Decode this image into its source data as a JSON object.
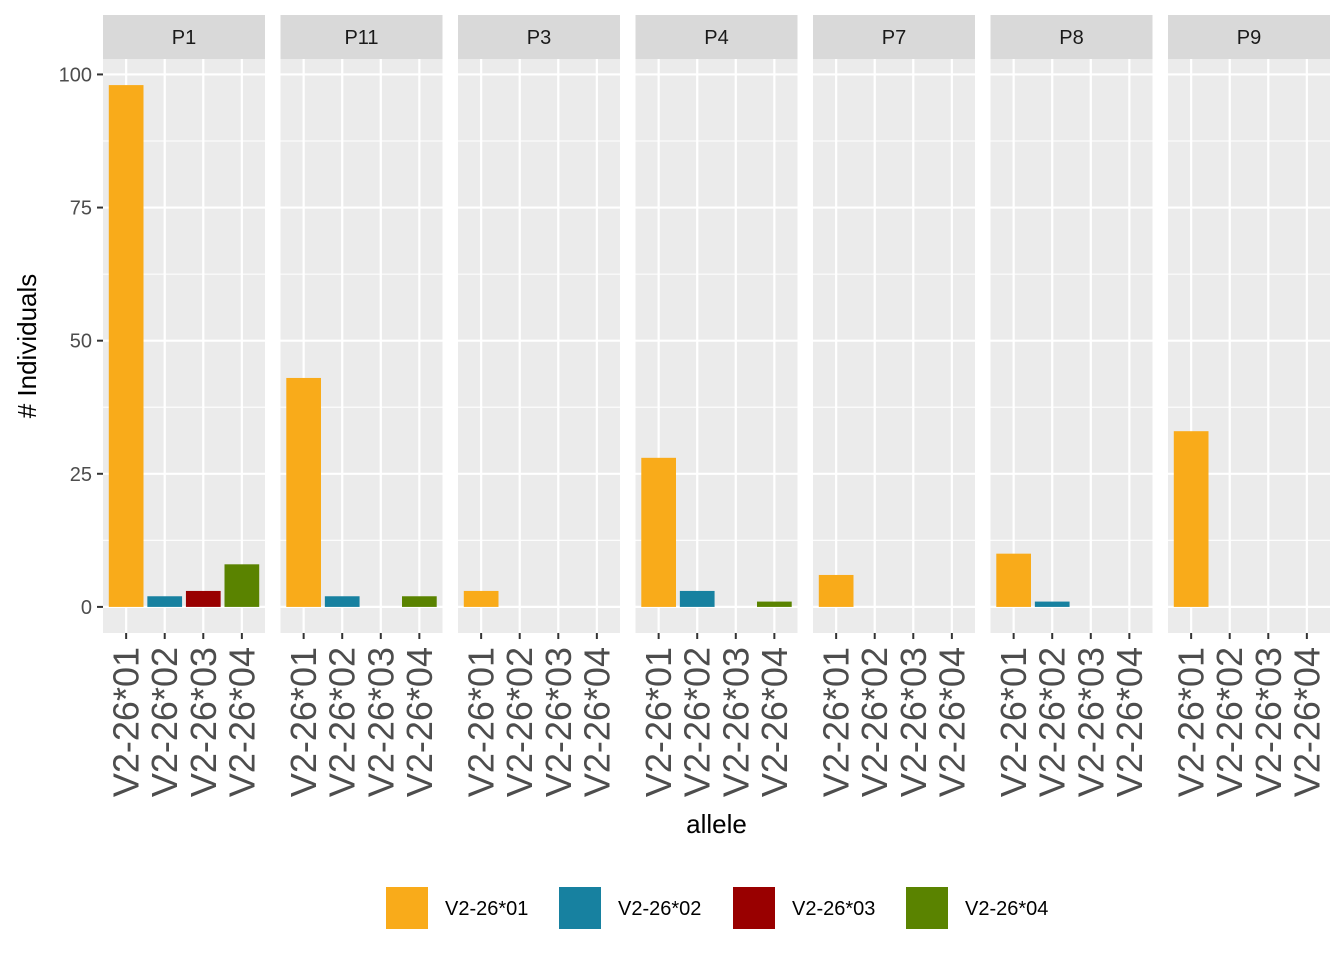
{
  "chart_data": {
    "type": "bar",
    "layout": "faceted",
    "xlabel": "allele",
    "ylabel": "# Individuals",
    "ylim": [
      -4.9,
      102.9
    ],
    "yticks": [
      0,
      25,
      50,
      75,
      100
    ],
    "grid": true,
    "legend_position": "bottom",
    "categories": [
      "V2-26*01",
      "V2-26*02",
      "V2-26*03",
      "V2-26*04"
    ],
    "colors": {
      "V2-26*01": "#F9AB1A",
      "V2-26*02": "#1781A0",
      "V2-26*03": "#990000",
      "V2-26*04": "#5A8300"
    },
    "legend": [
      "V2-26*01",
      "V2-26*02",
      "V2-26*03",
      "V2-26*04"
    ],
    "facets": [
      {
        "label": "P1",
        "values": [
          98,
          2,
          3,
          8
        ]
      },
      {
        "label": "P11",
        "values": [
          43,
          2,
          0,
          2
        ]
      },
      {
        "label": "P3",
        "values": [
          3,
          0,
          0,
          0
        ]
      },
      {
        "label": "P4",
        "values": [
          28,
          3,
          0,
          1
        ]
      },
      {
        "label": "P7",
        "values": [
          6,
          0,
          0,
          0
        ]
      },
      {
        "label": "P8",
        "values": [
          10,
          1,
          0,
          0
        ]
      },
      {
        "label": "P9",
        "values": [
          33,
          0,
          0,
          0
        ]
      }
    ]
  }
}
